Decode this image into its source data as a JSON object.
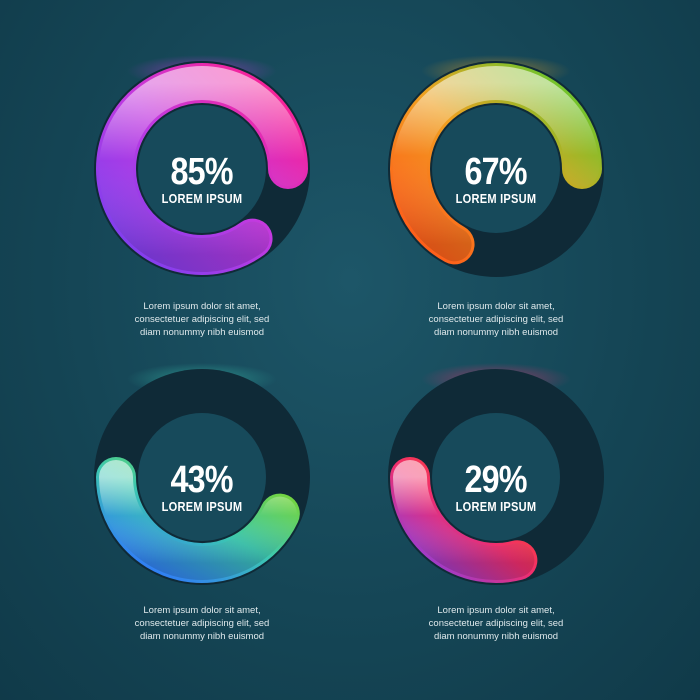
{
  "chart_data": [
    {
      "type": "donut",
      "value": 85,
      "max": 100,
      "value_label": "85%",
      "label": "LOREM IPSUM",
      "description": [
        "Lorem ipsum dolor sit amet,",
        "consectetuer adipiscing elit, sed",
        "diam nonummy nibh euismod"
      ],
      "colors": [
        "#ff1f8e",
        "#c23ae0",
        "#7a3ff0"
      ]
    },
    {
      "type": "donut",
      "value": 67,
      "max": 100,
      "value_label": "67%",
      "label": "LOREM IPSUM",
      "description": [
        "Lorem ipsum dolor sit amet,",
        "consectetuer adipiscing elit, sed",
        "diam nonummy nibh euismod"
      ],
      "colors": [
        "#5fc92d",
        "#f0a020",
        "#ff5a1a"
      ]
    },
    {
      "type": "donut",
      "value": 43,
      "max": 100,
      "value_label": "43%",
      "label": "LOREM IPSUM",
      "description": [
        "Lorem ipsum dolor sit amet,",
        "consectetuer adipiscing elit, sed",
        "diam nonummy nibh euismod"
      ],
      "colors": [
        "#7ed62a",
        "#3cc8b0",
        "#2f74ff"
      ]
    },
    {
      "type": "donut",
      "value": 29,
      "max": 100,
      "value_label": "29%",
      "label": "LOREM IPSUM",
      "description": [
        "Lorem ipsum dolor sit amet,",
        "consectetuer adipiscing elit, sed",
        "diam nonummy nibh euismod"
      ],
      "colors": [
        "#ff4a1a",
        "#f02e6e",
        "#8a3fe0"
      ]
    }
  ]
}
